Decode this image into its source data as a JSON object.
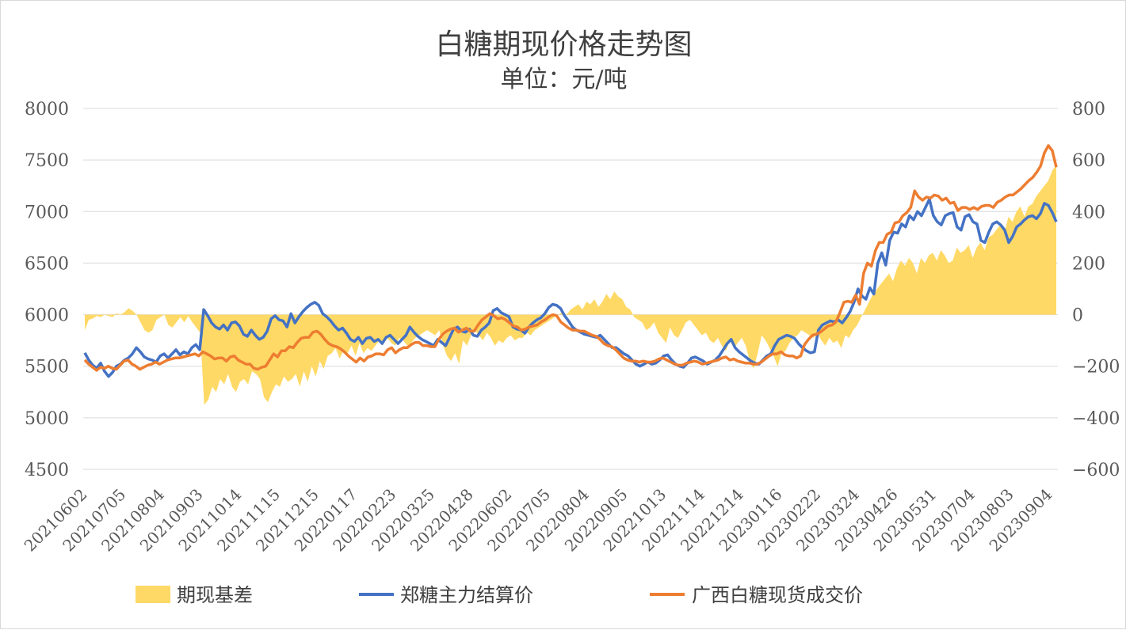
{
  "chart_data": {
    "type": "line",
    "title": "白糖期现价格走势图",
    "subtitle": "单位：元/吨",
    "left_axis": {
      "min": 4500,
      "max": 8000,
      "ticks": [
        8000,
        7500,
        7000,
        6500,
        6000,
        5500,
        5000,
        4500
      ]
    },
    "right_axis": {
      "min": -600,
      "max": 800,
      "ticks": [
        800,
        600,
        400,
        200,
        0,
        -200,
        -400,
        -600
      ]
    },
    "x_tick_labels": [
      "20210602",
      "20210705",
      "20210804",
      "20210903",
      "20211014",
      "20211115",
      "20211215",
      "20220117",
      "20220223",
      "20220325",
      "20220428",
      "20220602",
      "20220705",
      "20220804",
      "20220905",
      "20221013",
      "20221114",
      "20221214",
      "20230116",
      "20230222",
      "20230324",
      "20230426",
      "20230531",
      "20230704",
      "20230803",
      "20230904"
    ],
    "grid": true,
    "legend_position": "bottom",
    "colors": {
      "basis": "#FFD966",
      "zhengzhou": "#4472C4",
      "guangxi": "#ED7D31",
      "grid": "#D9D9D9"
    },
    "legend": [
      "期现基差",
      "郑糖主力结算价",
      "广西白糖现货成交价"
    ],
    "series": [
      {
        "name": "期现基差",
        "kind": "area",
        "axis": "right",
        "values": [
          -60,
          -20,
          -15,
          -5,
          -10,
          0,
          -5,
          -10,
          5,
          0,
          10,
          25,
          15,
          0,
          -30,
          -60,
          -70,
          -60,
          -20,
          -10,
          0,
          -40,
          -50,
          -30,
          -10,
          -30,
          -5,
          -30,
          -50,
          -70,
          -350,
          -330,
          -280,
          -300,
          -250,
          -270,
          -230,
          -280,
          -300,
          -260,
          -250,
          -270,
          -220,
          -230,
          -250,
          -320,
          -340,
          -300,
          -270,
          -280,
          -240,
          -260,
          -250,
          -230,
          -280,
          -220,
          -260,
          -200,
          -240,
          -180,
          -210,
          -160,
          -150,
          -130,
          -170,
          -140,
          -150,
          -120,
          -160,
          -110,
          -150,
          -130,
          -140,
          -120,
          -100,
          -110,
          -90,
          -110,
          -120,
          -90,
          -100,
          -120,
          -110,
          -90,
          -80,
          -70,
          -60,
          -70,
          -80,
          -60,
          -120,
          -160,
          -180,
          -150,
          -190,
          -100,
          -120,
          -80,
          -60,
          -80,
          -100,
          -70,
          -90,
          -120,
          -100,
          -110,
          -90,
          -80,
          -100,
          -90,
          -90,
          -70,
          -80,
          -60,
          -50,
          -40,
          -30,
          -20,
          -10,
          0,
          10,
          0,
          20,
          30,
          40,
          20,
          50,
          40,
          60,
          30,
          50,
          80,
          60,
          90,
          70,
          60,
          30,
          20,
          -10,
          -20,
          -30,
          -60,
          -50,
          -30,
          -70,
          -90,
          -110,
          -50,
          -80,
          -90,
          -60,
          -30,
          -20,
          -40,
          -60,
          -80,
          -70,
          -100,
          -110,
          -90,
          -120,
          -140,
          -100,
          -130,
          -110,
          -90,
          -120,
          -180,
          -210,
          -150,
          -80,
          -100,
          -130,
          -160,
          -200,
          -150,
          -140,
          -110,
          -90,
          -80,
          -60,
          -70,
          -80,
          -90,
          -70,
          -100,
          -120,
          -90,
          -110,
          -100,
          -130,
          -80,
          -90,
          -60,
          -40,
          -10,
          20,
          50,
          80,
          100,
          120,
          140,
          160,
          130,
          180,
          210,
          190,
          220,
          200,
          160,
          220,
          200,
          230,
          240,
          210,
          250,
          230,
          200,
          210,
          260,
          240,
          250,
          270,
          220,
          260,
          280,
          250,
          300,
          310,
          330,
          350,
          320,
          380,
          360,
          400,
          420,
          380,
          420,
          430,
          460,
          480,
          500,
          520,
          560,
          580
        ]
      },
      {
        "name": "郑糖主力结算价",
        "kind": "line",
        "axis": "left",
        "values": [
          5630,
          5560,
          5510,
          5480,
          5530,
          5450,
          5400,
          5440,
          5500,
          5520,
          5560,
          5580,
          5620,
          5680,
          5640,
          5590,
          5570,
          5560,
          5540,
          5600,
          5620,
          5580,
          5620,
          5660,
          5610,
          5640,
          5620,
          5680,
          5710,
          5660,
          6050,
          5990,
          5920,
          5880,
          5860,
          5900,
          5850,
          5920,
          5930,
          5890,
          5810,
          5790,
          5850,
          5800,
          5760,
          5780,
          5840,
          5960,
          5990,
          5950,
          5940,
          5880,
          6010,
          5920,
          5980,
          6030,
          6070,
          6100,
          6120,
          6090,
          6010,
          5980,
          5940,
          5890,
          5850,
          5870,
          5820,
          5760,
          5740,
          5780,
          5720,
          5770,
          5780,
          5740,
          5760,
          5720,
          5780,
          5800,
          5760,
          5720,
          5760,
          5800,
          5880,
          5830,
          5790,
          5760,
          5740,
          5720,
          5700,
          5760,
          5730,
          5700,
          5780,
          5860,
          5880,
          5840,
          5830,
          5860,
          5800,
          5790,
          5850,
          5880,
          5920,
          6040,
          6060,
          6020,
          6000,
          5980,
          5880,
          5860,
          5850,
          5820,
          5880,
          5920,
          5950,
          5970,
          6010,
          6070,
          6100,
          6090,
          6060,
          5990,
          5940,
          5880,
          5850,
          5830,
          5810,
          5800,
          5790,
          5780,
          5800,
          5760,
          5720,
          5680,
          5680,
          5650,
          5620,
          5600,
          5560,
          5520,
          5500,
          5520,
          5540,
          5520,
          5530,
          5560,
          5600,
          5610,
          5560,
          5520,
          5500,
          5490,
          5530,
          5580,
          5590,
          5570,
          5550,
          5520,
          5540,
          5560,
          5600,
          5660,
          5720,
          5760,
          5680,
          5640,
          5610,
          5580,
          5550,
          5530,
          5520,
          5560,
          5600,
          5620,
          5700,
          5760,
          5780,
          5800,
          5790,
          5770,
          5720,
          5680,
          5650,
          5630,
          5640,
          5850,
          5900,
          5920,
          5940,
          5930,
          5950,
          5920,
          5970,
          6030,
          6120,
          6250,
          6180,
          6150,
          6260,
          6200,
          6500,
          6600,
          6480,
          6720,
          6800,
          6790,
          6880,
          6850,
          6960,
          6920,
          7000,
          6960,
          7040,
          7120,
          6960,
          6900,
          6870,
          6960,
          6980,
          6990,
          6850,
          6820,
          6950,
          6970,
          6900,
          6880,
          6720,
          6700,
          6800,
          6880,
          6900,
          6870,
          6820,
          6700,
          6760,
          6850,
          6880,
          6920,
          6950,
          6960,
          6930,
          6980,
          7080,
          7060,
          6990,
          6900
        ]
      },
      {
        "name": "广西白糖现货成交价",
        "kind": "line",
        "axis": "left",
        "values": [
          5560,
          5520,
          5490,
          5460,
          5490,
          5480,
          5500,
          5480,
          5470,
          5510,
          5550,
          5560,
          5520,
          5500,
          5470,
          5490,
          5510,
          5520,
          5540,
          5520,
          5540,
          5560,
          5570,
          5580,
          5580,
          5590,
          5600,
          5610,
          5620,
          5600,
          5640,
          5620,
          5600,
          5570,
          5580,
          5580,
          5550,
          5590,
          5600,
          5560,
          5540,
          5520,
          5520,
          5480,
          5470,
          5490,
          5500,
          5560,
          5620,
          5590,
          5650,
          5650,
          5690,
          5680,
          5730,
          5770,
          5780,
          5780,
          5830,
          5840,
          5810,
          5760,
          5720,
          5700,
          5690,
          5670,
          5640,
          5600,
          5570,
          5540,
          5580,
          5550,
          5590,
          5600,
          5620,
          5620,
          5610,
          5660,
          5680,
          5630,
          5660,
          5680,
          5680,
          5710,
          5730,
          5730,
          5700,
          5700,
          5690,
          5690,
          5760,
          5810,
          5840,
          5860,
          5870,
          5830,
          5850,
          5870,
          5840,
          5840,
          5900,
          5950,
          5980,
          6010,
          5990,
          5960,
          5970,
          5950,
          5920,
          5890,
          5880,
          5850,
          5860,
          5880,
          5890,
          5900,
          5930,
          5950,
          5980,
          6000,
          5990,
          5930,
          5900,
          5870,
          5850,
          5850,
          5840,
          5840,
          5820,
          5800,
          5790,
          5760,
          5720,
          5700,
          5690,
          5660,
          5620,
          5580,
          5560,
          5550,
          5550,
          5540,
          5550,
          5540,
          5540,
          5550,
          5570,
          5580,
          5560,
          5540,
          5520,
          5510,
          5510,
          5530,
          5540,
          5550,
          5540,
          5520,
          5530,
          5540,
          5550,
          5560,
          5580,
          5590,
          5560,
          5570,
          5550,
          5540,
          5530,
          5530,
          5520,
          5520,
          5540,
          5570,
          5600,
          5620,
          5620,
          5640,
          5610,
          5600,
          5600,
          5580,
          5600,
          5710,
          5760,
          5800,
          5810,
          5830,
          5860,
          5890,
          5900,
          5930,
          6020,
          6120,
          6130,
          6120,
          6190,
          6100,
          6400,
          6500,
          6470,
          6620,
          6700,
          6700,
          6780,
          6800,
          6890,
          6900,
          6960,
          6990,
          7040,
          7200,
          7140,
          7110,
          7140,
          7130,
          7160,
          7150,
          7110,
          7130,
          7080,
          7090,
          7010,
          7040,
          7040,
          7020,
          7040,
          7020,
          7050,
          7060,
          7060,
          7040,
          7090,
          7110,
          7140,
          7160,
          7160,
          7190,
          7220,
          7260,
          7300,
          7330,
          7380,
          7440,
          7570,
          7640,
          7590,
          7430
        ]
      }
    ]
  }
}
